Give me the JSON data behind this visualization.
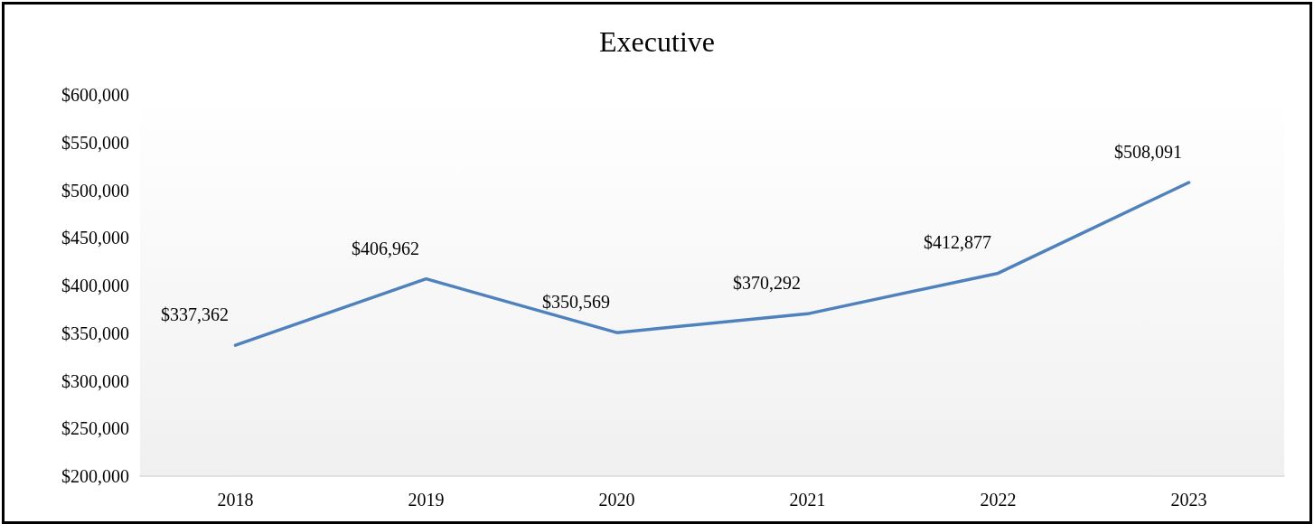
{
  "chart_data": {
    "type": "line",
    "title": "Executive",
    "categories": [
      "2018",
      "2019",
      "2020",
      "2021",
      "2022",
      "2023"
    ],
    "series": [
      {
        "color": "#4f81bd",
        "values": [
          337362,
          406962,
          350569,
          370292,
          412877,
          508091
        ],
        "value_labels": [
          "$337,362",
          "$406,962",
          "$350,569",
          "$370,292",
          "$412,877",
          "$508,091"
        ]
      }
    ],
    "ylim": [
      200000,
      600000
    ],
    "yticks": [
      {
        "value": 200000,
        "label": "$200,000"
      },
      {
        "value": 250000,
        "label": "$250,000"
      },
      {
        "value": 300000,
        "label": "$300,000"
      },
      {
        "value": 350000,
        "label": "$350,000"
      },
      {
        "value": 400000,
        "label": "$400,000"
      },
      {
        "value": 450000,
        "label": "$450,000"
      },
      {
        "value": 500000,
        "label": "$500,000"
      },
      {
        "value": 550000,
        "label": "$550,000"
      },
      {
        "value": 600000,
        "label": "$600,000"
      }
    ],
    "grid": false,
    "marker": "none",
    "line_style": "solid"
  }
}
